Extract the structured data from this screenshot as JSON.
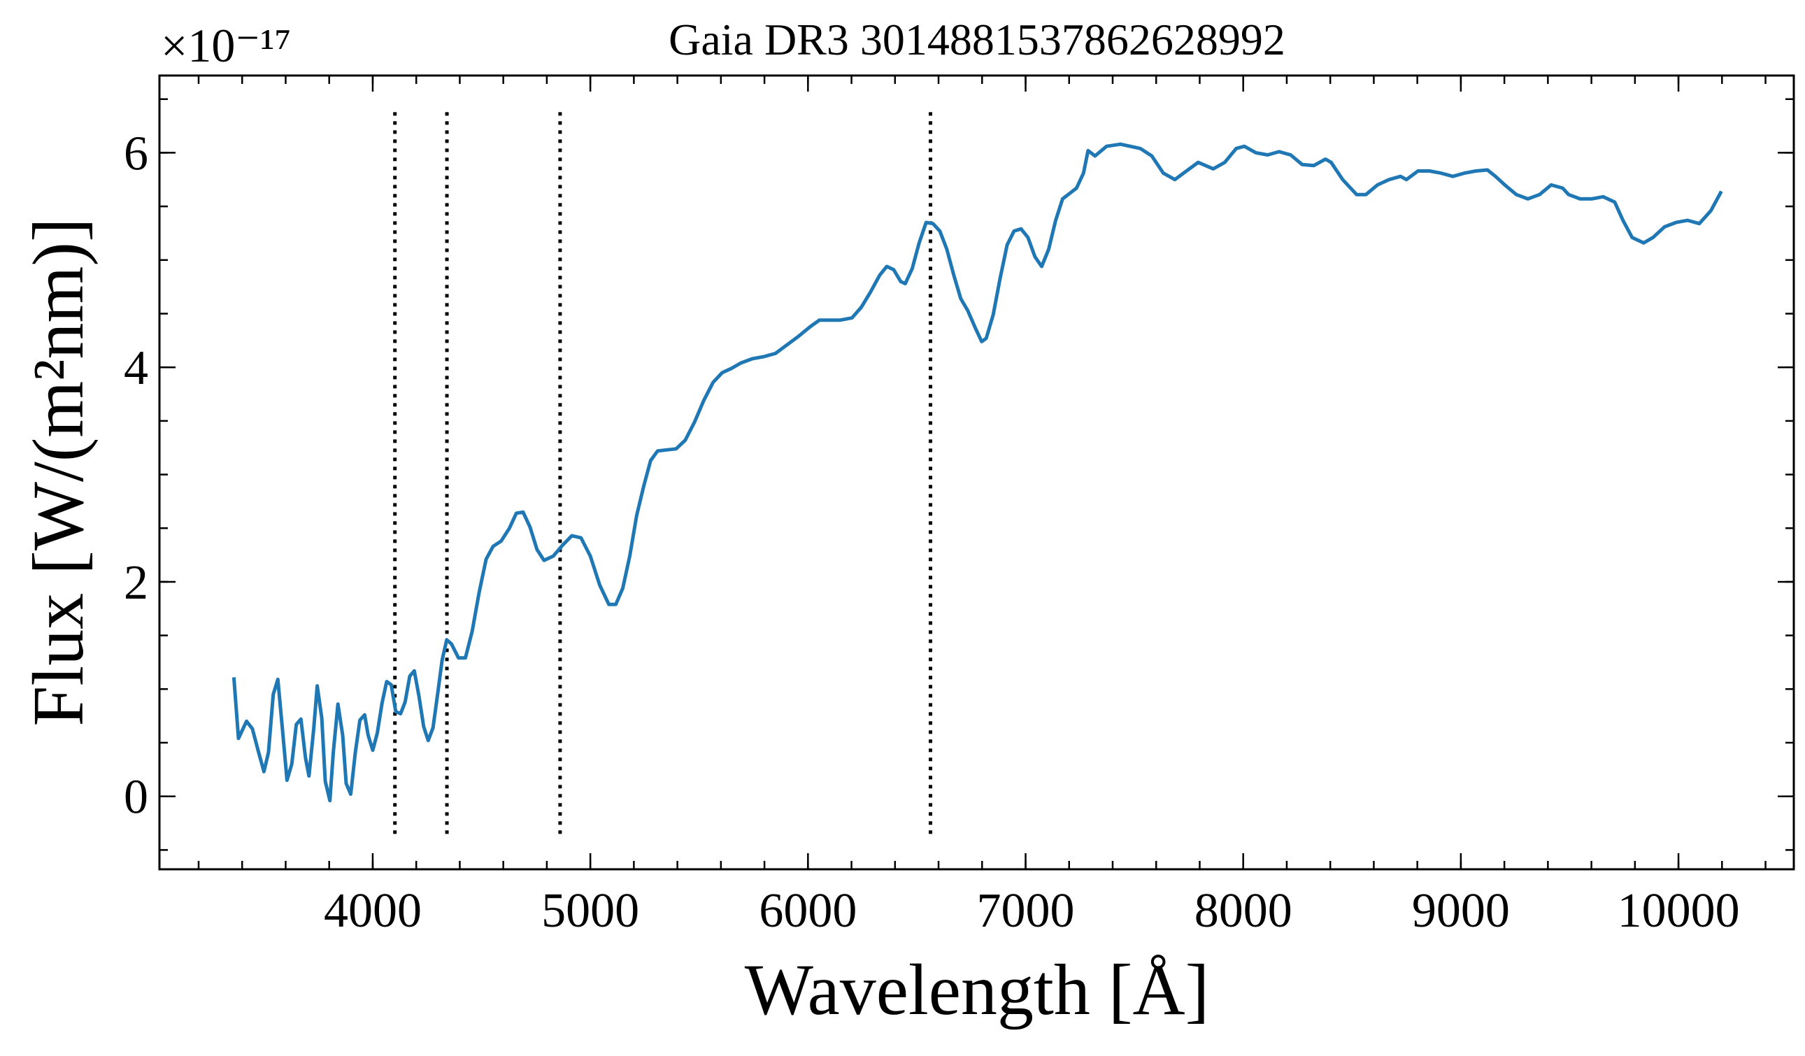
{
  "chart_data": {
    "type": "line",
    "title": "Gaia DR3 3014881537862628992",
    "x_label": "Wavelength [Å]",
    "y_label": "Flux [W/(m²nm)]",
    "y_offset_label": "×10⁻¹⁷",
    "xlim": [
      3020,
      10530
    ],
    "ylim": [
      -0.68,
      6.72
    ],
    "xticks": [
      4000,
      5000,
      6000,
      7000,
      8000,
      9000,
      10000
    ],
    "yticks": [
      0,
      2,
      4,
      6
    ],
    "xminorticks": [
      3200,
      3400,
      3600,
      3800,
      4000,
      4200,
      4400,
      4600,
      4800,
      5000,
      5200,
      5400,
      5600,
      5800,
      6000,
      6200,
      6400,
      6600,
      6800,
      7000,
      7200,
      7400,
      7600,
      7800,
      8000,
      8200,
      8400,
      8600,
      8800,
      9000,
      9200,
      9400,
      9600,
      9800,
      10000,
      10200,
      10400
    ],
    "yminorticks": [
      -0.5,
      0,
      0.5,
      1,
      1.5,
      2,
      2.5,
      3,
      3.5,
      4,
      4.5,
      5,
      5.5,
      6,
      6.5
    ],
    "vlines": {
      "x": [
        4102,
        4341,
        4861,
        6563
      ],
      "ymin": -0.35,
      "ymax": 6.4,
      "color": "#000000"
    },
    "series": [
      {
        "color": "#1f77b4",
        "x": [
          3362,
          3383,
          3420,
          3447,
          3473,
          3500,
          3521,
          3543,
          3564,
          3585,
          3606,
          3628,
          3649,
          3670,
          3691,
          3707,
          3729,
          3745,
          3766,
          3782,
          3803,
          3819,
          3840,
          3862,
          3878,
          3899,
          3920,
          3941,
          3963,
          3979,
          4000,
          4021,
          4043,
          4064,
          4085,
          4106,
          4128,
          4149,
          4170,
          4191,
          4213,
          4234,
          4255,
          4277,
          4298,
          4319,
          4340,
          4362,
          4394,
          4426,
          4457,
          4489,
          4521,
          4553,
          4590,
          4628,
          4660,
          4691,
          4723,
          4755,
          4787,
          4830,
          4872,
          4915,
          4957,
          5000,
          5043,
          5085,
          5117,
          5149,
          5181,
          5213,
          5245,
          5277,
          5309,
          5351,
          5394,
          5436,
          5479,
          5521,
          5564,
          5606,
          5649,
          5691,
          5745,
          5798,
          5851,
          5904,
          5957,
          6011,
          6053,
          6096,
          6149,
          6202,
          6245,
          6287,
          6330,
          6362,
          6394,
          6426,
          6447,
          6479,
          6511,
          6543,
          6574,
          6606,
          6638,
          6670,
          6702,
          6734,
          6766,
          6798,
          6819,
          6851,
          6883,
          6915,
          6947,
          6979,
          7011,
          7043,
          7074,
          7106,
          7138,
          7170,
          7202,
          7234,
          7266,
          7287,
          7319,
          7372,
          7436,
          7527,
          7580,
          7633,
          7686,
          7739,
          7793,
          7862,
          7915,
          7968,
          8005,
          8058,
          8112,
          8165,
          8218,
          8271,
          8324,
          8378,
          8404,
          8457,
          8521,
          8564,
          8617,
          8670,
          8723,
          8750,
          8803,
          8856,
          8909,
          8963,
          9016,
          9069,
          9122,
          9159,
          9202,
          9255,
          9308,
          9362,
          9415,
          9468,
          9495,
          9548,
          9601,
          9654,
          9707,
          9745,
          9787,
          9840,
          9883,
          9936,
          9989,
          10042,
          10096,
          10149,
          10197
        ],
        "values": [
          1.11,
          0.54,
          0.7,
          0.63,
          0.43,
          0.23,
          0.41,
          0.95,
          1.09,
          0.63,
          0.15,
          0.3,
          0.67,
          0.72,
          0.36,
          0.19,
          0.63,
          1.03,
          0.73,
          0.14,
          -0.04,
          0.41,
          0.86,
          0.57,
          0.12,
          0.02,
          0.41,
          0.71,
          0.76,
          0.57,
          0.43,
          0.59,
          0.87,
          1.07,
          1.04,
          0.79,
          0.77,
          0.88,
          1.12,
          1.17,
          0.93,
          0.65,
          0.52,
          0.64,
          0.95,
          1.27,
          1.46,
          1.42,
          1.29,
          1.29,
          1.54,
          1.9,
          2.21,
          2.33,
          2.38,
          2.5,
          2.64,
          2.65,
          2.51,
          2.3,
          2.2,
          2.24,
          2.34,
          2.43,
          2.41,
          2.24,
          1.97,
          1.79,
          1.79,
          1.94,
          2.24,
          2.62,
          2.89,
          3.13,
          3.22,
          3.23,
          3.24,
          3.32,
          3.49,
          3.69,
          3.86,
          3.95,
          3.99,
          4.04,
          4.08,
          4.1,
          4.13,
          4.21,
          4.29,
          4.38,
          4.44,
          4.44,
          4.44,
          4.46,
          4.56,
          4.7,
          4.86,
          4.94,
          4.91,
          4.8,
          4.78,
          4.92,
          5.16,
          5.35,
          5.34,
          5.27,
          5.1,
          4.86,
          4.64,
          4.53,
          4.38,
          4.24,
          4.27,
          4.49,
          4.83,
          5.14,
          5.27,
          5.29,
          5.21,
          5.03,
          4.94,
          5.1,
          5.37,
          5.57,
          5.62,
          5.67,
          5.81,
          6.02,
          5.97,
          6.06,
          6.08,
          6.04,
          5.97,
          5.81,
          5.75,
          5.83,
          5.91,
          5.85,
          5.91,
          6.04,
          6.06,
          6.0,
          5.98,
          6.01,
          5.98,
          5.89,
          5.88,
          5.94,
          5.91,
          5.75,
          5.61,
          5.61,
          5.7,
          5.75,
          5.78,
          5.75,
          5.83,
          5.83,
          5.81,
          5.78,
          5.81,
          5.83,
          5.84,
          5.78,
          5.7,
          5.61,
          5.57,
          5.61,
          5.7,
          5.67,
          5.61,
          5.57,
          5.57,
          5.59,
          5.54,
          5.37,
          5.21,
          5.16,
          5.21,
          5.31,
          5.35,
          5.37,
          5.34,
          5.46,
          5.64
        ]
      }
    ]
  }
}
